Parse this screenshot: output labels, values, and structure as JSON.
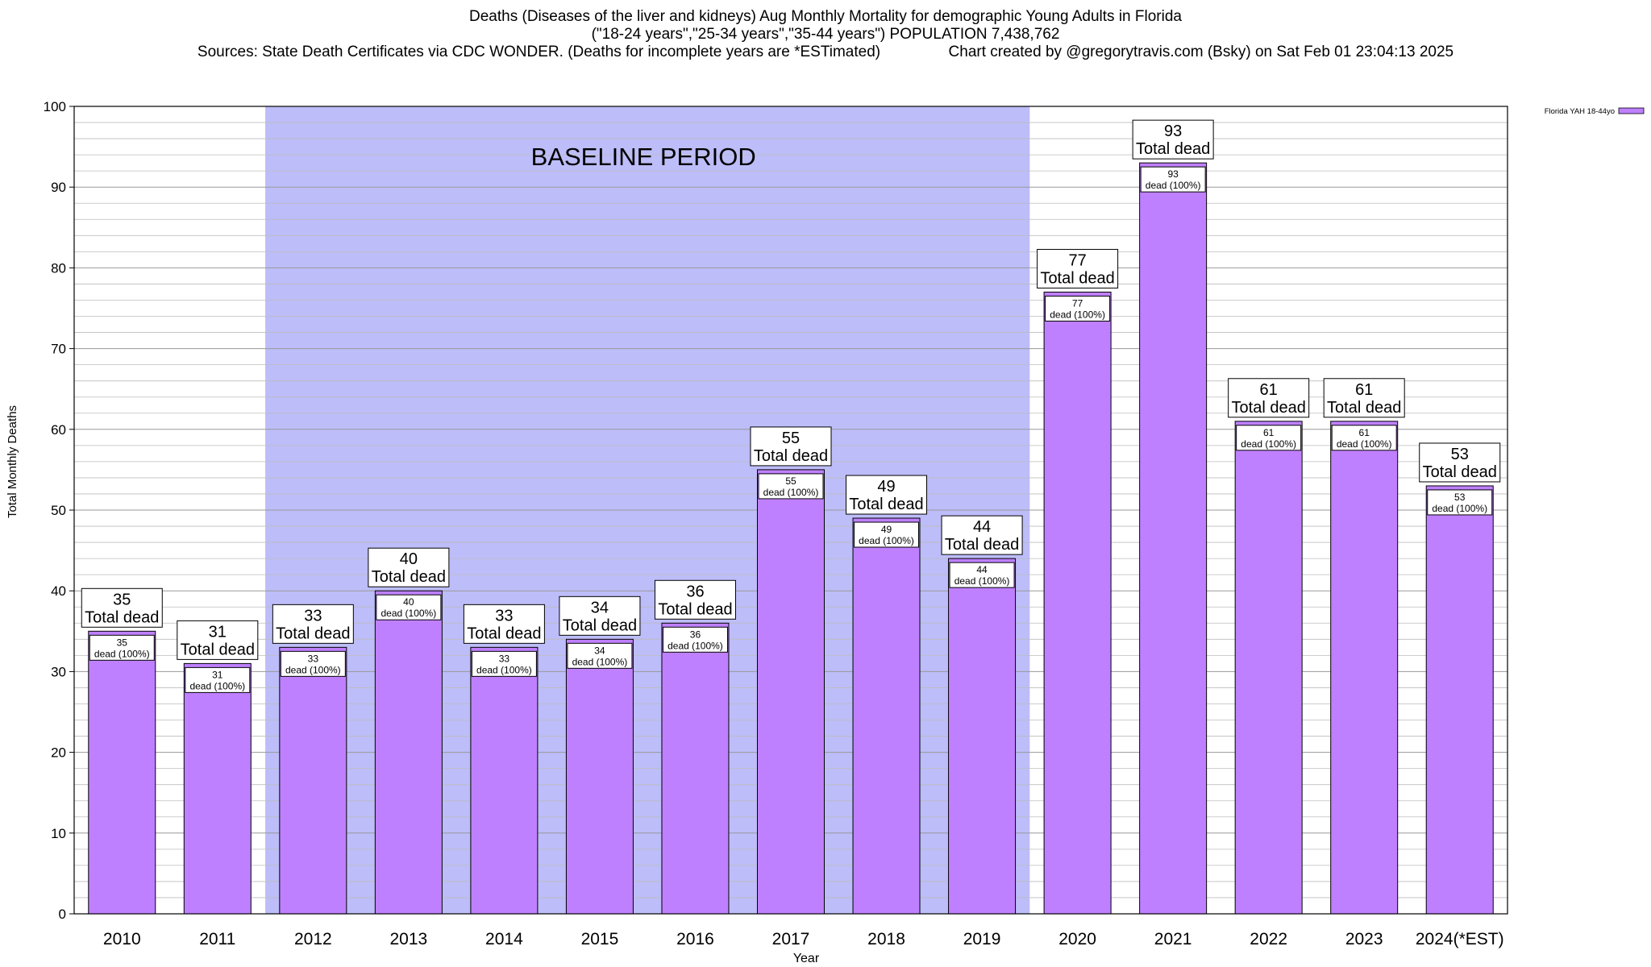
{
  "header": {
    "title_line1": "Deaths (Diseases of the liver and kidneys) Aug Monthly Mortality for demographic Young Adults in Florida",
    "title_line2": "(\"18-24 years\",\"25-34 years\",\"35-44 years\") POPULATION 7,438,762",
    "title_line3": "Sources: State Death Certificates via CDC WONDER. (Deaths for incomplete years are *ESTimated)                Chart created by @gregorytravis.com (Bsky) on Sat Feb 01 23:04:13 2025"
  },
  "chart_data": {
    "type": "bar",
    "xlabel": "Year",
    "ylabel": "Total Monthly Deaths",
    "ylim": [
      0,
      100
    ],
    "y_ticks": [
      0,
      10,
      20,
      30,
      40,
      50,
      60,
      70,
      80,
      90,
      100
    ],
    "grid": true,
    "legend_position": "top-right",
    "categories": [
      "2010",
      "2011",
      "2012",
      "2013",
      "2014",
      "2015",
      "2016",
      "2017",
      "2018",
      "2019",
      "2020",
      "2021",
      "2022",
      "2023",
      "2024(*EST)"
    ],
    "series": [
      {
        "name": "Florida YAH 18-44yo",
        "color": "#bf80ff",
        "values": [
          35,
          31,
          33,
          40,
          33,
          34,
          36,
          55,
          49,
          44,
          77,
          93,
          61,
          61,
          53
        ]
      }
    ],
    "total_label_suffix": "Total dead",
    "inner_label_suffix": "dead (100%)",
    "baseline": {
      "label": "BASELINE PERIOD",
      "start": "2012",
      "end": "2019",
      "color": "#bdbdf9"
    }
  }
}
